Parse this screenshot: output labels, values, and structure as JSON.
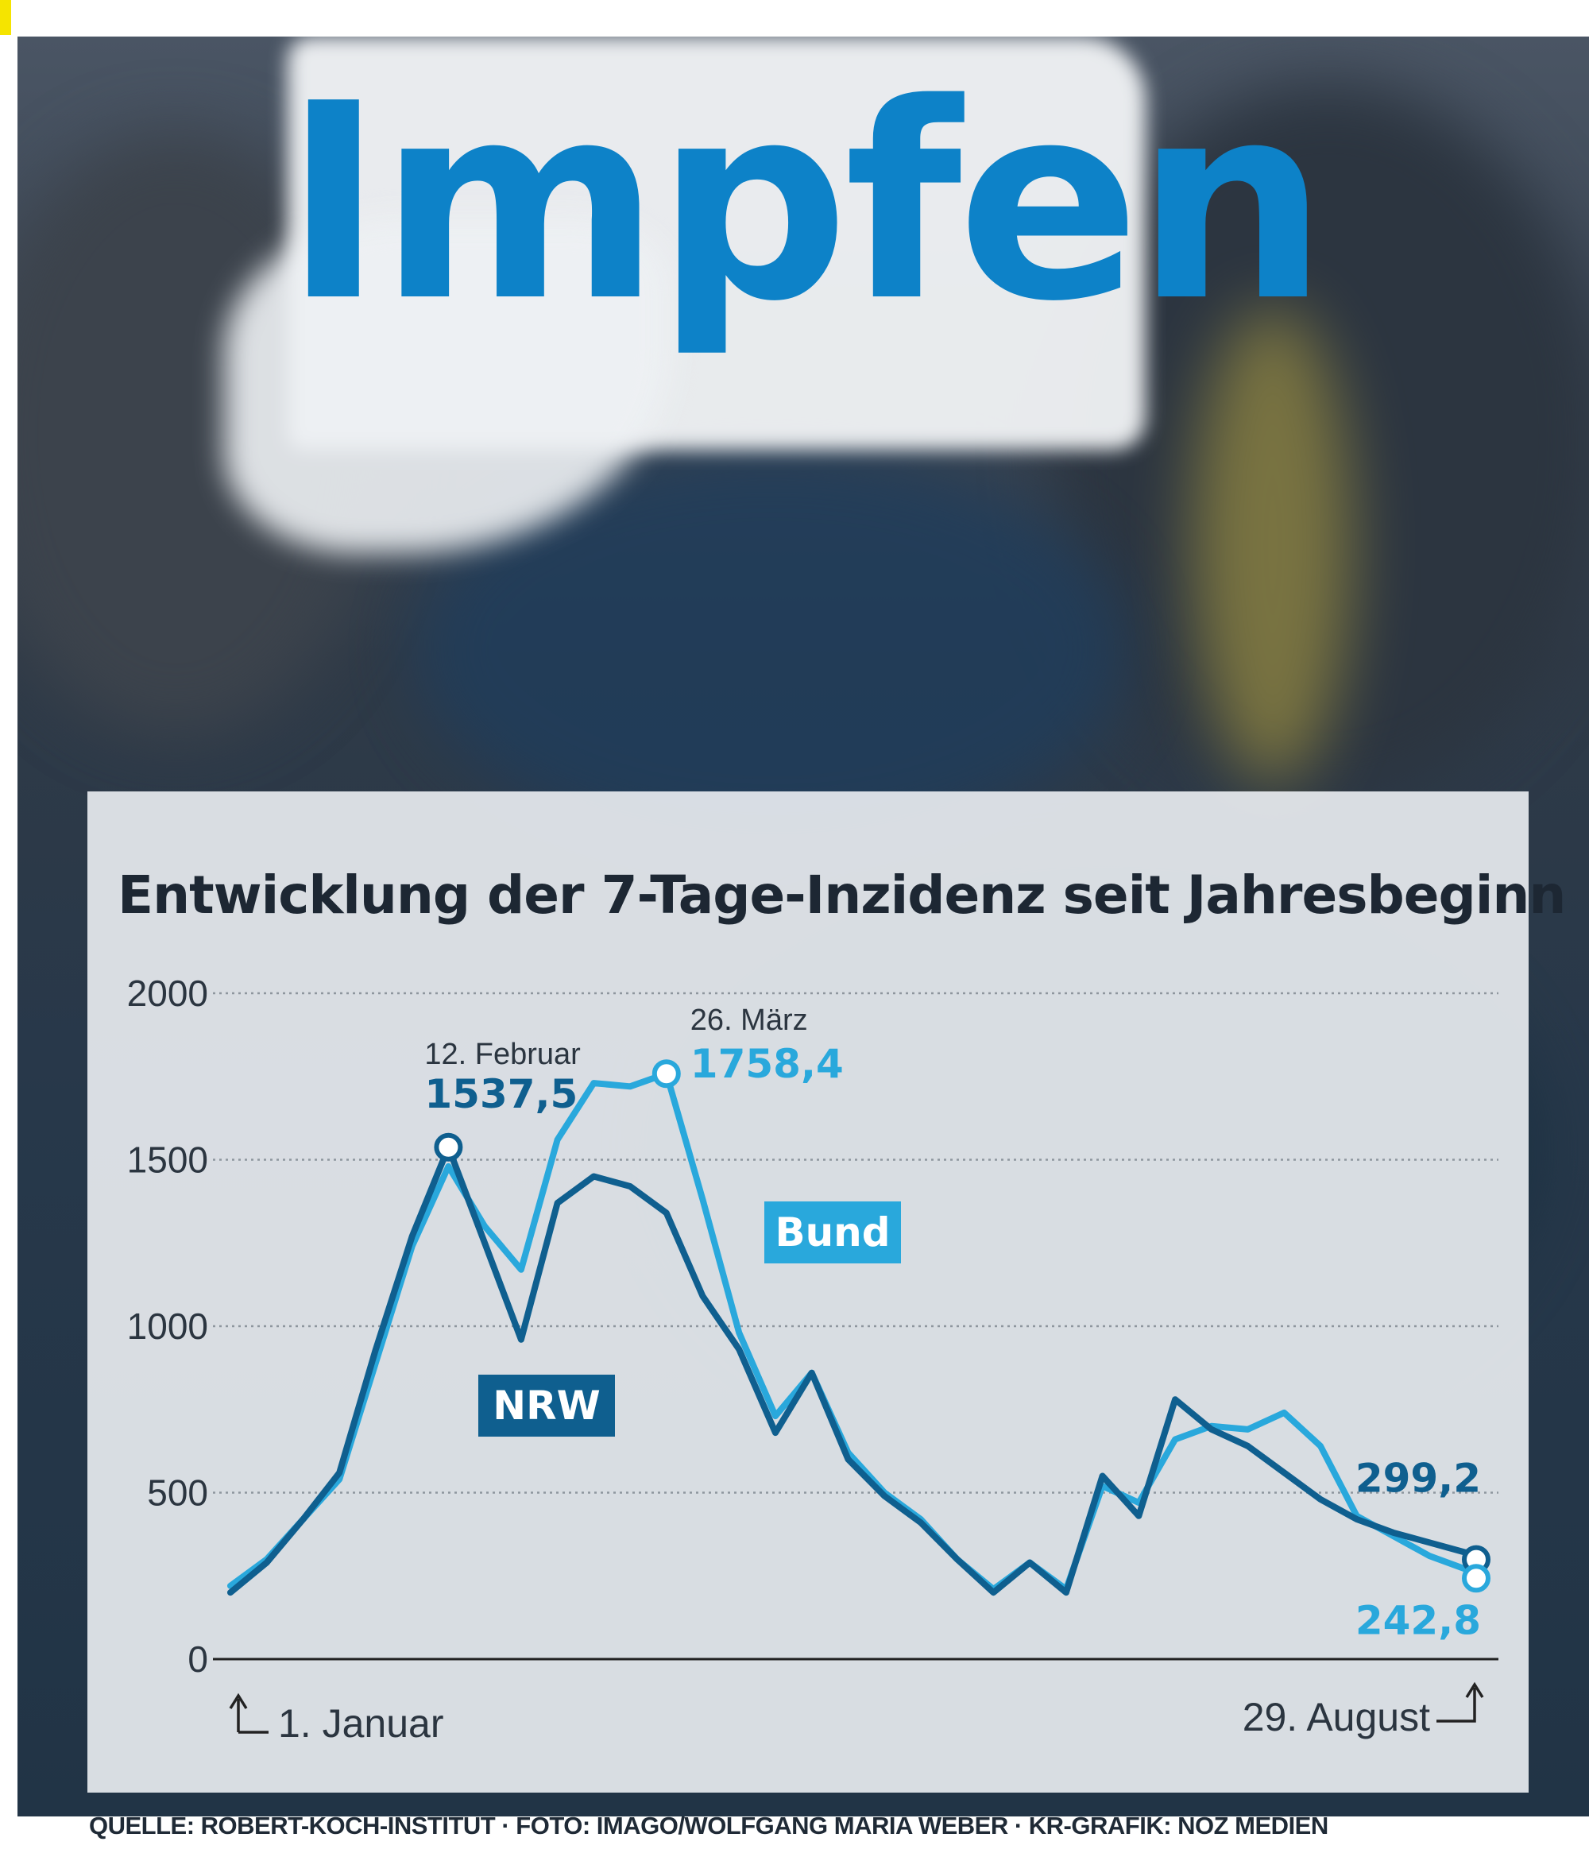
{
  "hero": {
    "title": "Impfen"
  },
  "colors": {
    "nrw": "#0f5f8f",
    "bund": "#29a8dc",
    "axis_text": "#2b3540",
    "grid": "#8e969e"
  },
  "source": "QUELLE: ROBERT-KOCH-INSTITUT · FOTO: IMAGO/WOLFGANG MARIA WEBER · KR-GRAFIK: NOZ MEDIEN",
  "chart_data": {
    "type": "line",
    "title": "Entwicklung der 7-Tage-Inzidenz seit Jahresbeginn",
    "xlabel": "",
    "ylabel": "",
    "x_range": [
      "1. Januar",
      "29. August"
    ],
    "x_start_label": "1. Januar",
    "x_end_label": "29. August",
    "ylim": [
      0,
      2000
    ],
    "yticks": [
      "0",
      "500",
      "1000",
      "1500",
      "2000"
    ],
    "grid": true,
    "series": [
      {
        "name": "NRW",
        "x": [
          "01-01",
          "01-08",
          "01-15",
          "01-22",
          "01-29",
          "02-05",
          "02-12",
          "02-19",
          "02-26",
          "03-05",
          "03-12",
          "03-19",
          "03-26",
          "04-02",
          "04-09",
          "04-16",
          "04-23",
          "04-30",
          "05-07",
          "05-14",
          "05-21",
          "05-28",
          "06-04",
          "06-11",
          "06-18",
          "06-25",
          "07-02",
          "07-09",
          "07-16",
          "07-23",
          "07-30",
          "08-06",
          "08-13",
          "08-20",
          "08-27",
          "08-29"
        ],
        "values": [
          200,
          290,
          420,
          560,
          930,
          1270,
          1537.5,
          1250,
          960,
          1370,
          1450,
          1420,
          1340,
          1090,
          930,
          680,
          860,
          600,
          490,
          410,
          300,
          200,
          290,
          200,
          550,
          430,
          780,
          690,
          640,
          560,
          480,
          420,
          380,
          350,
          320,
          299.2
        ]
      },
      {
        "name": "Bund",
        "x": [
          "01-01",
          "01-08",
          "01-15",
          "01-22",
          "01-29",
          "02-05",
          "02-12",
          "02-19",
          "02-26",
          "03-05",
          "03-12",
          "03-19",
          "03-26",
          "04-02",
          "04-09",
          "04-16",
          "04-23",
          "04-30",
          "05-07",
          "05-14",
          "05-21",
          "05-28",
          "06-04",
          "06-11",
          "06-18",
          "06-25",
          "07-02",
          "07-09",
          "07-16",
          "07-23",
          "07-30",
          "08-06",
          "08-13",
          "08-20",
          "08-27",
          "08-29"
        ],
        "values": [
          220,
          300,
          420,
          540,
          890,
          1240,
          1480,
          1300,
          1170,
          1560,
          1730,
          1720,
          1758.4,
          1380,
          980,
          730,
          860,
          620,
          500,
          420,
          300,
          210,
          290,
          210,
          520,
          470,
          660,
          700,
          690,
          740,
          640,
          430,
          370,
          310,
          270,
          242.8
        ]
      }
    ],
    "annotations": [
      {
        "series": "NRW",
        "date_label": "12. Februar",
        "value_label": "1537,5",
        "x": "02-12",
        "y": 1537.5
      },
      {
        "series": "Bund",
        "date_label": "26. März",
        "value_label": "1758,4",
        "x": "03-26",
        "y": 1758.4
      },
      {
        "series": "NRW",
        "date_label": "",
        "value_label": "299,2",
        "x": "08-29",
        "y": 299.2
      },
      {
        "series": "Bund",
        "date_label": "",
        "value_label": "242,8",
        "x": "08-29",
        "y": 242.8
      }
    ],
    "series_labels": [
      {
        "text": "Bund",
        "series": "Bund"
      },
      {
        "text": "NRW",
        "series": "NRW"
      }
    ]
  }
}
